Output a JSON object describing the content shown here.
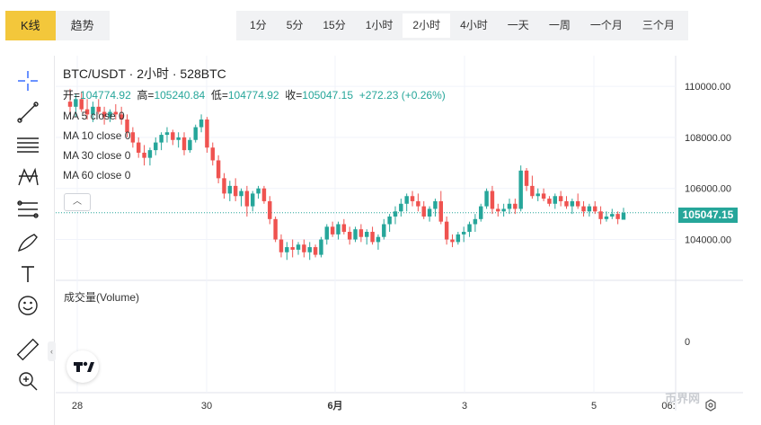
{
  "view_tabs": [
    {
      "label": "K线",
      "active": true
    },
    {
      "label": "趋势",
      "active": false
    }
  ],
  "interval_tabs": [
    {
      "label": "1分",
      "active": false
    },
    {
      "label": "5分",
      "active": false
    },
    {
      "label": "15分",
      "active": false
    },
    {
      "label": "1小时",
      "active": false
    },
    {
      "label": "2小时",
      "active": true
    },
    {
      "label": "4小时",
      "active": false
    },
    {
      "label": "一天",
      "active": false
    },
    {
      "label": "一周",
      "active": false
    },
    {
      "label": "一个月",
      "active": false
    },
    {
      "label": "三个月",
      "active": false
    }
  ],
  "tools": [
    "crosshair-icon",
    "trendline-icon",
    "fib-lines-icon",
    "pattern-icon",
    "projection-icon",
    "brush-icon",
    "text-icon",
    "emoji-icon",
    "ruler-icon",
    "zoom-icon"
  ],
  "legend": {
    "title": "BTC/USDT · 2小时 · 528BTC",
    "open_label": "开=",
    "open": "104774.92",
    "high_label": "高=",
    "high": "105240.84",
    "low_label": "低=",
    "low": "104774.92",
    "close_label": "收=",
    "close": "105047.15",
    "change": "+272.23 (+0.26%)",
    "ma": [
      "MA 5 close 0",
      "MA 10 close 0",
      "MA 30 close 0",
      "MA 60 close 0"
    ]
  },
  "volume_title": "成交量(Volume)",
  "volume_axis_label": "0",
  "current_price_tag": "105047.15",
  "watermark": "币界网",
  "colors": {
    "up": "#26a69a",
    "down": "#ef5350",
    "accent": "#f3c73b"
  },
  "chart_data": {
    "type": "candlestick",
    "title": "BTC/USDT · 2小时 · 528BTC",
    "y_ticks": [
      "110000.00",
      "108000.00",
      "106000.00",
      "104000.00"
    ],
    "ylim": [
      102400,
      111200
    ],
    "x_ticks": [
      "28",
      "30",
      "6月",
      "3",
      "5",
      "06:"
    ],
    "last_price": 105047.15,
    "grid": true,
    "candles": [
      [
        109400,
        109900,
        108900,
        109200
      ],
      [
        109200,
        109700,
        108800,
        109500
      ],
      [
        109500,
        109800,
        109000,
        109100
      ],
      [
        109100,
        109500,
        108700,
        108900
      ],
      [
        108900,
        109400,
        108600,
        109200
      ],
      [
        109200,
        109500,
        108900,
        109000
      ],
      [
        109000,
        109200,
        108500,
        108800
      ],
      [
        108800,
        109100,
        108600,
        109000
      ],
      [
        109000,
        109300,
        108700,
        108900
      ],
      [
        108900,
        109200,
        108500,
        108700
      ],
      [
        108700,
        108900,
        108000,
        108200
      ],
      [
        108200,
        108400,
        107600,
        107800
      ],
      [
        107800,
        108000,
        107200,
        107400
      ],
      [
        107400,
        107700,
        106900,
        107200
      ],
      [
        107200,
        107600,
        106900,
        107500
      ],
      [
        107500,
        108000,
        107300,
        107800
      ],
      [
        107800,
        108200,
        107500,
        108100
      ],
      [
        108100,
        108400,
        107800,
        108200
      ],
      [
        108200,
        108300,
        107700,
        107900
      ],
      [
        107900,
        108200,
        107600,
        108000
      ],
      [
        108000,
        108200,
        107300,
        107500
      ],
      [
        107500,
        108000,
        107400,
        107900
      ],
      [
        107900,
        108500,
        107800,
        108400
      ],
      [
        108400,
        108900,
        108200,
        108700
      ],
      [
        108700,
        108800,
        107400,
        107600
      ],
      [
        107600,
        107800,
        106900,
        107100
      ],
      [
        107100,
        107300,
        106200,
        106400
      ],
      [
        106400,
        106600,
        105600,
        105800
      ],
      [
        105800,
        106300,
        105500,
        106100
      ],
      [
        106100,
        106400,
        105500,
        105700
      ],
      [
        105700,
        106000,
        105300,
        105900
      ],
      [
        105900,
        106100,
        104900,
        105300
      ],
      [
        105300,
        105900,
        105100,
        105800
      ],
      [
        105800,
        106100,
        105600,
        106000
      ],
      [
        106000,
        106100,
        105400,
        105500
      ],
      [
        105500,
        105700,
        104600,
        104800
      ],
      [
        104800,
        104900,
        103900,
        104000
      ],
      [
        104000,
        104200,
        103300,
        103500
      ],
      [
        103500,
        103900,
        103200,
        103700
      ],
      [
        103700,
        104000,
        103300,
        103600
      ],
      [
        103600,
        103900,
        103400,
        103800
      ],
      [
        103800,
        104000,
        103300,
        103500
      ],
      [
        103500,
        103900,
        103200,
        103700
      ],
      [
        103700,
        103800,
        103300,
        103400
      ],
      [
        103400,
        104100,
        103300,
        104000
      ],
      [
        104000,
        104600,
        103800,
        104500
      ],
      [
        104500,
        104700,
        104100,
        104200
      ],
      [
        104200,
        104700,
        104000,
        104600
      ],
      [
        104600,
        104800,
        104200,
        104300
      ],
      [
        104300,
        104500,
        103800,
        104000
      ],
      [
        104000,
        104500,
        103900,
        104400
      ],
      [
        104400,
        104600,
        103900,
        104100
      ],
      [
        104100,
        104400,
        103800,
        104300
      ],
      [
        104300,
        104500,
        103800,
        103900
      ],
      [
        103900,
        104200,
        103600,
        104100
      ],
      [
        104100,
        104800,
        104000,
        104600
      ],
      [
        104600,
        105000,
        104300,
        104900
      ],
      [
        104900,
        105300,
        104600,
        105100
      ],
      [
        105100,
        105600,
        104900,
        105400
      ],
      [
        105400,
        105800,
        105100,
        105700
      ],
      [
        105700,
        105900,
        105300,
        105500
      ],
      [
        105500,
        105800,
        105100,
        105300
      ],
      [
        105300,
        105500,
        104800,
        104900
      ],
      [
        104900,
        105300,
        104700,
        105200
      ],
      [
        105200,
        105600,
        104900,
        105500
      ],
      [
        105500,
        105900,
        104600,
        104700
      ],
      [
        104700,
        104900,
        103800,
        104000
      ],
      [
        104000,
        104200,
        103700,
        103900
      ],
      [
        103900,
        104300,
        103800,
        104200
      ],
      [
        104200,
        104500,
        103900,
        104300
      ],
      [
        104300,
        104700,
        104100,
        104600
      ],
      [
        104600,
        105000,
        104300,
        104800
      ],
      [
        104800,
        105400,
        104700,
        105300
      ],
      [
        105300,
        106000,
        105200,
        105900
      ],
      [
        105900,
        106100,
        105000,
        105200
      ],
      [
        105200,
        105400,
        104900,
        105100
      ],
      [
        105100,
        105400,
        104900,
        105200
      ],
      [
        105200,
        105600,
        105000,
        105400
      ],
      [
        105400,
        105600,
        105000,
        105200
      ],
      [
        105200,
        106900,
        105100,
        106700
      ],
      [
        106700,
        106800,
        105900,
        106100
      ],
      [
        106100,
        106500,
        105600,
        105700
      ],
      [
        105700,
        106000,
        105500,
        105800
      ],
      [
        105800,
        106000,
        105500,
        105600
      ],
      [
        105600,
        105700,
        105300,
        105400
      ],
      [
        105400,
        105800,
        105200,
        105700
      ],
      [
        105700,
        105900,
        105300,
        105500
      ],
      [
        105500,
        105700,
        105200,
        105300
      ],
      [
        105300,
        105600,
        105000,
        105500
      ],
      [
        105500,
        105800,
        105200,
        105300
      ],
      [
        105300,
        105500,
        104900,
        105100
      ],
      [
        105100,
        105400,
        104900,
        105300
      ],
      [
        105300,
        105500,
        105000,
        105100
      ],
      [
        105100,
        105300,
        104600,
        104800
      ],
      [
        104800,
        105100,
        104700,
        104900
      ],
      [
        104900,
        105200,
        104800,
        105000
      ],
      [
        105000,
        105100,
        104600,
        104800
      ],
      [
        104774.92,
        105240.84,
        104774.92,
        105047.15
      ]
    ]
  }
}
